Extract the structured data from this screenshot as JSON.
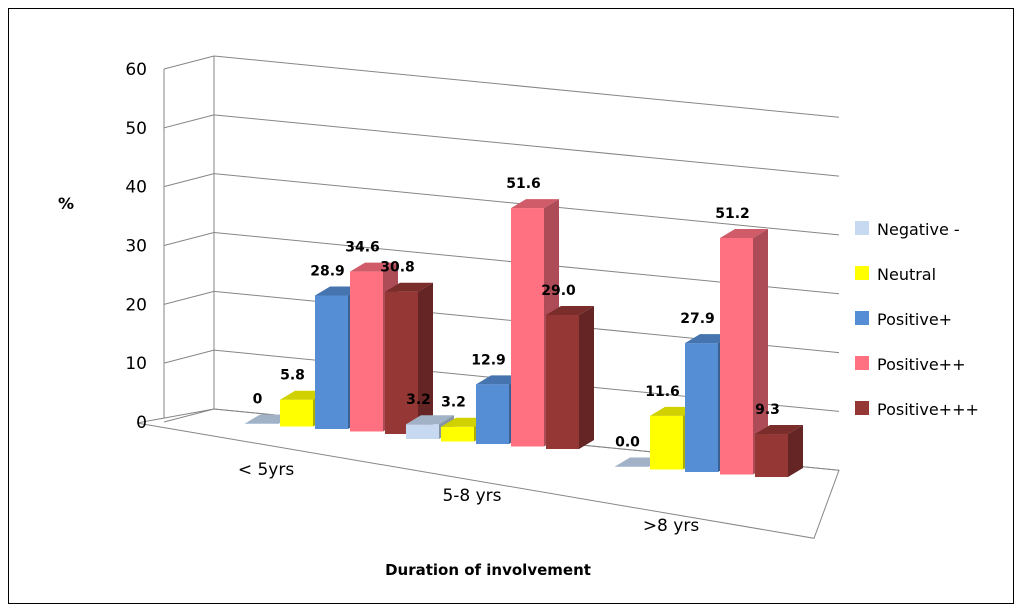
{
  "chart_data": {
    "type": "bar",
    "title": "",
    "xlabel": "Duration of involvement",
    "ylabel": "%",
    "ylim": [
      0,
      60
    ],
    "yticks": [
      "0",
      "10",
      "20",
      "30",
      "40",
      "50",
      "60"
    ],
    "grid": true,
    "legend_position": "right",
    "categories": [
      "< 5yrs",
      "5-8 yrs",
      ">8 yrs"
    ],
    "series": [
      {
        "name": "Negative -",
        "color": "#c6d9f1",
        "values": [
          0,
          3.2,
          0.0
        ],
        "labels": [
          "0",
          "3.2",
          "0.0"
        ]
      },
      {
        "name": "Neutral",
        "color": "#ffff00",
        "values": [
          5.8,
          3.2,
          11.6
        ],
        "labels": [
          "5.8",
          "3.2",
          "11.6"
        ]
      },
      {
        "name": "Positive+",
        "color": "#558ed5",
        "values": [
          28.9,
          12.9,
          27.9
        ],
        "labels": [
          "28.9",
          "12.9",
          "27.9"
        ]
      },
      {
        "name": "Positive++",
        "color": "#ff7080",
        "values": [
          34.6,
          51.6,
          51.2
        ],
        "labels": [
          "34.6",
          "51.6",
          "51.2"
        ]
      },
      {
        "name": "Positive+++",
        "color": "#953735",
        "values": [
          30.8,
          29.0,
          9.3
        ],
        "labels": [
          "30.8",
          "29.0",
          "9.3"
        ]
      }
    ]
  }
}
